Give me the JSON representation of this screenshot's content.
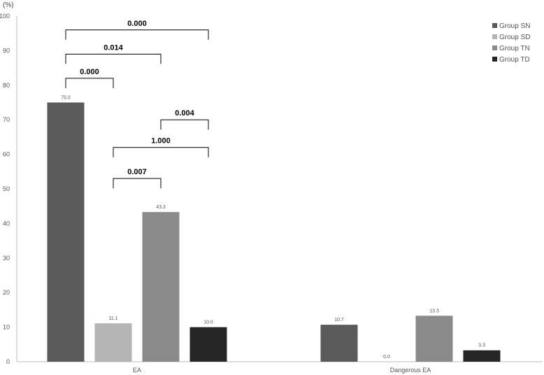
{
  "chart_data": {
    "type": "bar",
    "unit_label": "(%)",
    "categories": [
      "EA",
      "Dangerous EA"
    ],
    "series": [
      {
        "name": "Group SN",
        "color": "#5a5a5a",
        "values": [
          75.0,
          10.7
        ],
        "labels": [
          "75.0",
          "10.7"
        ]
      },
      {
        "name": "Group SD",
        "color": "#b4b4b4",
        "values": [
          11.1,
          0.0
        ],
        "labels": [
          "11.1",
          "0.0"
        ]
      },
      {
        "name": "Group TN",
        "color": "#8a8a8a",
        "values": [
          43.3,
          13.3
        ],
        "labels": [
          "43.3",
          "13.3"
        ]
      },
      {
        "name": "Group TD",
        "color": "#262626",
        "values": [
          10.0,
          3.3
        ],
        "labels": [
          "10.0",
          "3.3"
        ]
      }
    ],
    "ylim": [
      0,
      100
    ],
    "yticks": [
      "0",
      "10",
      "20",
      "30",
      "40",
      "50",
      "60",
      "70",
      "80",
      "90",
      "100"
    ],
    "legend_position": "top-right",
    "grid": false,
    "comparisons": [
      {
        "category": 0,
        "from": 0,
        "to": 1,
        "level": 82,
        "label": "0.000"
      },
      {
        "category": 0,
        "from": 0,
        "to": 2,
        "level": 89,
        "label": "0.014"
      },
      {
        "category": 0,
        "from": 0,
        "to": 3,
        "level": 96,
        "label": "0.000"
      },
      {
        "category": 0,
        "from": 2,
        "to": 3,
        "level": 70,
        "label": "0.004"
      },
      {
        "category": 0,
        "from": 1,
        "to": 3,
        "level": 62,
        "label": "1.000"
      },
      {
        "category": 0,
        "from": 1,
        "to": 2,
        "level": 53,
        "label": "0.007"
      }
    ]
  }
}
